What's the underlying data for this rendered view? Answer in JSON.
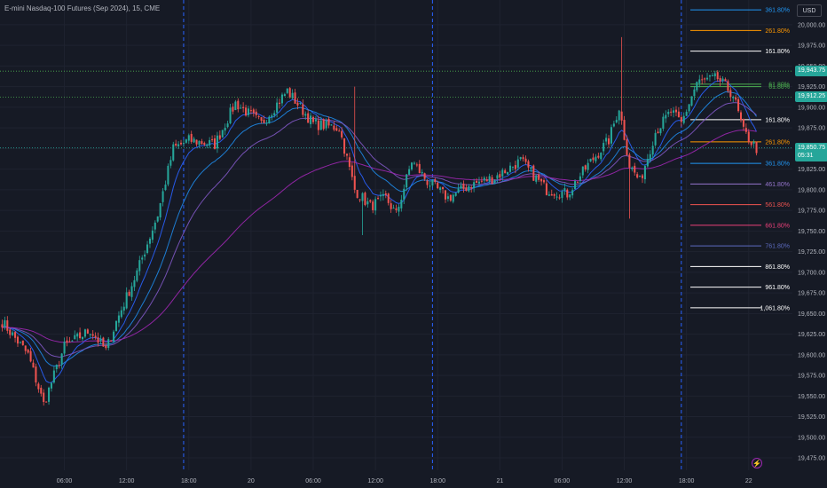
{
  "header": {
    "symbol_title": "E-mini Nasdaq-100 Futures (Sep 2024), 15, CME",
    "currency_button": "USD"
  },
  "colors": {
    "background": "#161a25",
    "grid": "#1f2330",
    "up_candle": "#26a69a",
    "down_candle": "#ef5350",
    "session_line": "#2962ff",
    "axis_text": "#b2b5be",
    "ema_fast": "#2962ff",
    "ema_slow": "#9c27b0"
  },
  "price_tags": [
    {
      "label": "19,943.75",
      "value": 19943.75,
      "bg": "#26a69a",
      "line": "#4caf50",
      "dotted": true
    },
    {
      "label": "19,912.25",
      "value": 19912.25,
      "bg": "#26a69a",
      "line": "#4caf50",
      "dotted": true
    },
    {
      "label": "19,850.75",
      "sub": "05:31",
      "value": 19850.75,
      "bg": "#26a69a",
      "line": "#26a69a",
      "dotted": true
    }
  ],
  "lightning_icon": "lightning-icon",
  "chart_data": {
    "type": "candlestick",
    "title": "E-mini Nasdaq-100 Futures (Sep 2024), 15, CME",
    "ylim": [
      19460,
      20030
    ],
    "y_ticks": [
      20000,
      19975,
      19950,
      19925,
      19900,
      19875,
      19850,
      19825,
      19800,
      19775,
      19750,
      19725,
      19700,
      19675,
      19650,
      19625,
      19600,
      19575,
      19550,
      19525,
      19500,
      19475
    ],
    "y_tick_labels": [
      "20,000.00",
      "19,975.00",
      "19,950.00",
      "19,925.00",
      "19,900.00",
      "19,875.00",
      "19,850.00",
      "19,825.00",
      "19,800.00",
      "19,775.00",
      "19,750.00",
      "19,725.00",
      "19,700.00",
      "19,675.00",
      "19,650.00",
      "19,625.00",
      "19,600.00",
      "19,575.00",
      "19,550.00",
      "19,525.00",
      "19,500.00",
      "19,475.00"
    ],
    "x_labels": [
      "06:00",
      "12:00",
      "18:00",
      "20",
      "06:00",
      "12:00",
      "18:00",
      "21",
      "06:00",
      "12:00",
      "18:00",
      "22"
    ],
    "x_label_bar_index": [
      24,
      48,
      72,
      96,
      120,
      144,
      168,
      192,
      216,
      240,
      264,
      288
    ],
    "bar_count": 292,
    "session_breaks_bar_index": [
      70,
      166,
      262
    ],
    "key_closes": [
      {
        "bar": 0,
        "close": 19640
      },
      {
        "bar": 10,
        "close": 19600
      },
      {
        "bar": 16,
        "close": 19540
      },
      {
        "bar": 24,
        "close": 19610
      },
      {
        "bar": 34,
        "close": 19630
      },
      {
        "bar": 40,
        "close": 19605
      },
      {
        "bar": 44,
        "close": 19640
      },
      {
        "bar": 52,
        "close": 19700
      },
      {
        "bar": 60,
        "close": 19770
      },
      {
        "bar": 66,
        "close": 19850
      },
      {
        "bar": 72,
        "close": 19860
      },
      {
        "bar": 82,
        "close": 19855
      },
      {
        "bar": 90,
        "close": 19905
      },
      {
        "bar": 100,
        "close": 19880
      },
      {
        "bar": 110,
        "close": 19920
      },
      {
        "bar": 120,
        "close": 19880
      },
      {
        "bar": 130,
        "close": 19875
      },
      {
        "bar": 136,
        "close": 19800
      },
      {
        "bar": 142,
        "close": 19780
      },
      {
        "bar": 148,
        "close": 19790
      },
      {
        "bar": 152,
        "close": 19770
      },
      {
        "bar": 158,
        "close": 19835
      },
      {
        "bar": 164,
        "close": 19810
      },
      {
        "bar": 172,
        "close": 19790
      },
      {
        "bar": 180,
        "close": 19805
      },
      {
        "bar": 190,
        "close": 19815
      },
      {
        "bar": 200,
        "close": 19835
      },
      {
        "bar": 210,
        "close": 19800
      },
      {
        "bar": 218,
        "close": 19795
      },
      {
        "bar": 226,
        "close": 19830
      },
      {
        "bar": 234,
        "close": 19860
      },
      {
        "bar": 238,
        "close": 19900
      },
      {
        "bar": 242,
        "close": 19830
      },
      {
        "bar": 246,
        "close": 19810
      },
      {
        "bar": 252,
        "close": 19870
      },
      {
        "bar": 258,
        "close": 19895
      },
      {
        "bar": 262,
        "close": 19880
      },
      {
        "bar": 268,
        "close": 19930
      },
      {
        "bar": 276,
        "close": 19935
      },
      {
        "bar": 282,
        "close": 19915
      },
      {
        "bar": 286,
        "close": 19870
      },
      {
        "bar": 291,
        "close": 19850
      }
    ],
    "spikes": [
      {
        "bar": 136,
        "high": 19925
      },
      {
        "bar": 139,
        "low": 19745
      },
      {
        "bar": 239,
        "high": 19985
      },
      {
        "bar": 242,
        "low": 19765
      }
    ],
    "fib_levels": [
      {
        "label": "361.80%",
        "value": 20018,
        "color": "#2196f3"
      },
      {
        "label": "261.80%",
        "value": 19993,
        "color": "#ff9800"
      },
      {
        "label": "161.80%",
        "value": 19968,
        "color": "#ffffff"
      },
      {
        "label": "61.80%",
        "value": 19928,
        "color": "#4caf50"
      },
      {
        "label": "61.80%",
        "value": 19925,
        "color": "#4caf50"
      },
      {
        "label": "161.80%",
        "value": 19885,
        "color": "#ffffff"
      },
      {
        "label": "261.80%",
        "value": 19858,
        "color": "#ff9800"
      },
      {
        "label": "361.80%",
        "value": 19832,
        "color": "#2196f3"
      },
      {
        "label": "461.80%",
        "value": 19807,
        "color": "#9575cd"
      },
      {
        "label": "561.80%",
        "value": 19782,
        "color": "#ef5350"
      },
      {
        "label": "661.80%",
        "value": 19757,
        "color": "#ec407a"
      },
      {
        "label": "761.80%",
        "value": 19732,
        "color": "#5c6bc0"
      },
      {
        "label": "861.80%",
        "value": 19707,
        "color": "#ffffff"
      },
      {
        "label": "961.80%",
        "value": 19682,
        "color": "#ffffff"
      },
      {
        "label": "1,061.80%",
        "value": 19657,
        "color": "#ffffff"
      }
    ],
    "moving_averages": [
      {
        "period": 9,
        "color": "#2962ff"
      },
      {
        "period": 21,
        "color": "#1e88e5"
      },
      {
        "period": 34,
        "color": "#7e57c2"
      },
      {
        "period": 89,
        "color": "#9c27b0"
      }
    ]
  }
}
